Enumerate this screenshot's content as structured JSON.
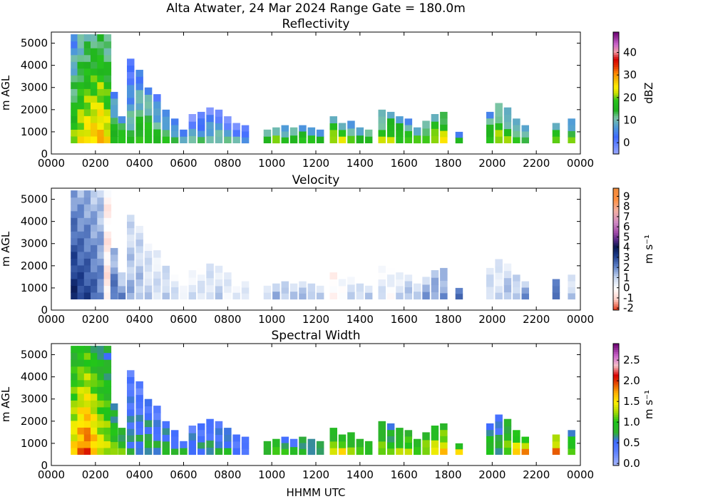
{
  "figure": {
    "title": "Alta Atwater, 24 Mar 2024 Range Gate = 180.0m",
    "xlabel": "HHMM UTC"
  },
  "chart_data": [
    {
      "type": "heatmap",
      "title": "Reflectivity",
      "ylabel": "m AGL",
      "xlim": [
        0,
        2400
      ],
      "ylim": [
        0,
        5500
      ],
      "x_ticks": [
        "0000",
        "0200",
        "0400",
        "0600",
        "0800",
        "1000",
        "1200",
        "1400",
        "1600",
        "1800",
        "2000",
        "2200",
        "0000"
      ],
      "y_ticks": [
        0,
        1000,
        2000,
        3000,
        4000,
        5000
      ],
      "colorbar": {
        "label": "dBZ",
        "range": [
          -5,
          49
        ],
        "ticks": [
          "0",
          "10",
          "20",
          "30",
          "40"
        ],
        "tick_values": [
          0,
          10,
          20,
          30,
          40
        ]
      },
      "series": [
        {
          "t": 105,
          "top": 5400,
          "v": 14
        },
        {
          "t": 135,
          "top": 5400,
          "v": 18
        },
        {
          "t": 165,
          "top": 5400,
          "v": 20
        },
        {
          "t": 195,
          "top": 5400,
          "v": 21
        },
        {
          "t": 225,
          "top": 5400,
          "v": 22
        },
        {
          "t": 255,
          "top": 5400,
          "v": 19
        },
        {
          "t": 285,
          "top": 2800,
          "v": 12
        },
        {
          "t": 320,
          "top": 1700,
          "v": 14
        },
        {
          "t": 360,
          "top": 4300,
          "v": 8
        },
        {
          "t": 400,
          "top": 3800,
          "v": 12
        },
        {
          "t": 440,
          "top": 3000,
          "v": 14
        },
        {
          "t": 480,
          "top": 2700,
          "v": 10
        },
        {
          "t": 520,
          "top": 2000,
          "v": 10
        },
        {
          "t": 560,
          "top": 1600,
          "v": 8
        },
        {
          "t": 600,
          "top": 1100,
          "v": 5
        },
        {
          "t": 640,
          "top": 1800,
          "v": 4
        },
        {
          "t": 680,
          "top": 1900,
          "v": 5
        },
        {
          "t": 720,
          "top": 2100,
          "v": 6
        },
        {
          "t": 760,
          "top": 2000,
          "v": 6
        },
        {
          "t": 800,
          "top": 1700,
          "v": 4
        },
        {
          "t": 840,
          "top": 1400,
          "v": 3
        },
        {
          "t": 880,
          "top": 1300,
          "v": 2
        },
        {
          "t": 980,
          "top": 1100,
          "v": 10
        },
        {
          "t": 1020,
          "top": 1200,
          "v": 12
        },
        {
          "t": 1060,
          "top": 1300,
          "v": 11
        },
        {
          "t": 1100,
          "top": 1200,
          "v": 12
        },
        {
          "t": 1140,
          "top": 1300,
          "v": 12
        },
        {
          "t": 1180,
          "top": 1200,
          "v": 10
        },
        {
          "t": 1220,
          "top": 1100,
          "v": 10
        },
        {
          "t": 1280,
          "top": 1700,
          "v": 17
        },
        {
          "t": 1320,
          "top": 1400,
          "v": 16
        },
        {
          "t": 1360,
          "top": 1500,
          "v": 12
        },
        {
          "t": 1400,
          "top": 1200,
          "v": 11
        },
        {
          "t": 1440,
          "top": 1100,
          "v": 11
        },
        {
          "t": 1500,
          "top": 2000,
          "v": 14
        },
        {
          "t": 1540,
          "top": 1900,
          "v": 16
        },
        {
          "t": 1580,
          "top": 1700,
          "v": 14
        },
        {
          "t": 1620,
          "top": 1600,
          "v": 13
        },
        {
          "t": 1660,
          "top": 1200,
          "v": 11
        },
        {
          "t": 1700,
          "top": 1500,
          "v": 14
        },
        {
          "t": 1740,
          "top": 1800,
          "v": 17
        },
        {
          "t": 1780,
          "top": 1900,
          "v": 18
        },
        {
          "t": 1850,
          "top": 1000,
          "v": 8
        },
        {
          "t": 1990,
          "top": 1900,
          "v": 14
        },
        {
          "t": 2030,
          "top": 2300,
          "v": 16
        },
        {
          "t": 2070,
          "top": 2100,
          "v": 13
        },
        {
          "t": 2110,
          "top": 1600,
          "v": 12
        },
        {
          "t": 2150,
          "top": 1300,
          "v": 10
        },
        {
          "t": 2290,
          "top": 1400,
          "v": 14
        },
        {
          "t": 2360,
          "top": 1600,
          "v": 12
        }
      ]
    },
    {
      "type": "heatmap",
      "title": "Velocity",
      "ylabel": "m AGL",
      "xlim": [
        0,
        2400
      ],
      "ylim": [
        0,
        5500
      ],
      "x_ticks": [
        "0000",
        "0200",
        "0400",
        "0600",
        "0800",
        "1000",
        "1200",
        "1400",
        "1600",
        "1800",
        "2000",
        "2200",
        "0000"
      ],
      "y_ticks": [
        0,
        1000,
        2000,
        3000,
        4000,
        5000
      ],
      "colorbar": {
        "label": "m s⁻¹",
        "range": [
          -2.2,
          9.8
        ],
        "ticks": [
          "-2",
          "-1",
          "0",
          "1",
          "2",
          "3",
          "4",
          "5",
          "6",
          "7",
          "8",
          "9"
        ],
        "tick_values": [
          -2,
          -1,
          0,
          1,
          2,
          3,
          4,
          5,
          6,
          7,
          8,
          9
        ]
      },
      "series": [
        {
          "t": 105,
          "top": 5400,
          "v": 3.6
        },
        {
          "t": 135,
          "top": 5400,
          "v": 3.2
        },
        {
          "t": 165,
          "top": 5400,
          "v": 3.0
        },
        {
          "t": 195,
          "top": 5400,
          "v": 2.6
        },
        {
          "t": 225,
          "top": 5400,
          "v": 2.2
        },
        {
          "t": 255,
          "top": 5400,
          "v": -0.6
        },
        {
          "t": 285,
          "top": 2800,
          "v": 2.5
        },
        {
          "t": 320,
          "top": 1700,
          "v": 2.0
        },
        {
          "t": 360,
          "top": 4300,
          "v": 1.5
        },
        {
          "t": 400,
          "top": 3800,
          "v": 1.4
        },
        {
          "t": 440,
          "top": 3000,
          "v": 1.0
        },
        {
          "t": 480,
          "top": 2700,
          "v": 0.8
        },
        {
          "t": 520,
          "top": 2000,
          "v": 1.2
        },
        {
          "t": 560,
          "top": 1600,
          "v": 0.7
        },
        {
          "t": 600,
          "top": 1100,
          "v": 0.6
        },
        {
          "t": 640,
          "top": 1800,
          "v": 0.7
        },
        {
          "t": 680,
          "top": 1900,
          "v": 0.6
        },
        {
          "t": 720,
          "top": 2100,
          "v": 0.9
        },
        {
          "t": 760,
          "top": 2000,
          "v": 1.0
        },
        {
          "t": 800,
          "top": 1700,
          "v": 0.5
        },
        {
          "t": 840,
          "top": 1400,
          "v": 0.5
        },
        {
          "t": 880,
          "top": 1300,
          "v": 0.4
        },
        {
          "t": 980,
          "top": 1100,
          "v": 1.1
        },
        {
          "t": 1020,
          "top": 1200,
          "v": 1.3
        },
        {
          "t": 1060,
          "top": 1300,
          "v": 1.2
        },
        {
          "t": 1100,
          "top": 1200,
          "v": 1.4
        },
        {
          "t": 1140,
          "top": 1300,
          "v": 1.2
        },
        {
          "t": 1180,
          "top": 1200,
          "v": 1.5
        },
        {
          "t": 1220,
          "top": 1100,
          "v": 1.0
        },
        {
          "t": 1280,
          "top": 1700,
          "v": -0.4
        },
        {
          "t": 1320,
          "top": 1400,
          "v": 0.3
        },
        {
          "t": 1360,
          "top": 1500,
          "v": 0.8
        },
        {
          "t": 1400,
          "top": 1200,
          "v": 1.0
        },
        {
          "t": 1440,
          "top": 1100,
          "v": 1.3
        },
        {
          "t": 1500,
          "top": 2000,
          "v": 0.6
        },
        {
          "t": 1540,
          "top": 1900,
          "v": 0.2
        },
        {
          "t": 1580,
          "top": 1700,
          "v": 0.9
        },
        {
          "t": 1620,
          "top": 1600,
          "v": 1.2
        },
        {
          "t": 1660,
          "top": 1200,
          "v": 1.4
        },
        {
          "t": 1700,
          "top": 1500,
          "v": 1.6
        },
        {
          "t": 1740,
          "top": 1800,
          "v": 1.8
        },
        {
          "t": 1780,
          "top": 1900,
          "v": 2.0
        },
        {
          "t": 1850,
          "top": 1000,
          "v": 2.4
        },
        {
          "t": 1990,
          "top": 1900,
          "v": 1.0
        },
        {
          "t": 2030,
          "top": 2300,
          "v": 0.8
        },
        {
          "t": 2070,
          "top": 2100,
          "v": 1.3
        },
        {
          "t": 2110,
          "top": 1600,
          "v": 1.4
        },
        {
          "t": 2150,
          "top": 1300,
          "v": 1.8
        },
        {
          "t": 2290,
          "top": 1400,
          "v": 2.8
        },
        {
          "t": 2360,
          "top": 1600,
          "v": 1.2
        }
      ]
    },
    {
      "type": "heatmap",
      "title": "Spectral Width",
      "ylabel": "m AGL",
      "xlim": [
        0,
        2400
      ],
      "ylim": [
        0,
        5500
      ],
      "x_ticks": [
        "0000",
        "0200",
        "0400",
        "0600",
        "0800",
        "1000",
        "1200",
        "1400",
        "1600",
        "1800",
        "2000",
        "2200",
        "0000"
      ],
      "y_ticks": [
        0,
        1000,
        2000,
        3000,
        4000,
        5000
      ],
      "colorbar": {
        "label": "m s⁻¹",
        "range": [
          -0.05,
          2.9
        ],
        "ticks": [
          "0.0",
          "0.5",
          "1.0",
          "1.5",
          "2.0",
          "2.5"
        ],
        "tick_values": [
          0,
          0.5,
          1,
          1.5,
          2,
          2.5
        ]
      },
      "series": [
        {
          "t": 105,
          "top": 5400,
          "v": 1.2
        },
        {
          "t": 135,
          "top": 5400,
          "v": 1.4
        },
        {
          "t": 165,
          "top": 5400,
          "v": 1.5
        },
        {
          "t": 195,
          "top": 5400,
          "v": 1.3
        },
        {
          "t": 225,
          "top": 5400,
          "v": 1.1
        },
        {
          "t": 255,
          "top": 5400,
          "v": 1.0
        },
        {
          "t": 285,
          "top": 2800,
          "v": 0.9
        },
        {
          "t": 320,
          "top": 1700,
          "v": 0.8
        },
        {
          "t": 360,
          "top": 4300,
          "v": 0.5
        },
        {
          "t": 400,
          "top": 3800,
          "v": 0.5
        },
        {
          "t": 440,
          "top": 3000,
          "v": 0.6
        },
        {
          "t": 480,
          "top": 2700,
          "v": 0.5
        },
        {
          "t": 520,
          "top": 2000,
          "v": 0.6
        },
        {
          "t": 560,
          "top": 1600,
          "v": 0.5
        },
        {
          "t": 600,
          "top": 1100,
          "v": 0.6
        },
        {
          "t": 640,
          "top": 1800,
          "v": 0.5
        },
        {
          "t": 680,
          "top": 1900,
          "v": 0.5
        },
        {
          "t": 720,
          "top": 2100,
          "v": 0.5
        },
        {
          "t": 760,
          "top": 2000,
          "v": 0.5
        },
        {
          "t": 800,
          "top": 1700,
          "v": 0.6
        },
        {
          "t": 840,
          "top": 1400,
          "v": 0.4
        },
        {
          "t": 880,
          "top": 1300,
          "v": 0.4
        },
        {
          "t": 980,
          "top": 1100,
          "v": 0.7
        },
        {
          "t": 1020,
          "top": 1200,
          "v": 0.8
        },
        {
          "t": 1060,
          "top": 1300,
          "v": 0.7
        },
        {
          "t": 1100,
          "top": 1200,
          "v": 0.6
        },
        {
          "t": 1140,
          "top": 1300,
          "v": 0.7
        },
        {
          "t": 1180,
          "top": 1200,
          "v": 0.6
        },
        {
          "t": 1220,
          "top": 1100,
          "v": 0.6
        },
        {
          "t": 1280,
          "top": 1700,
          "v": 1.0
        },
        {
          "t": 1320,
          "top": 1400,
          "v": 1.1
        },
        {
          "t": 1360,
          "top": 1500,
          "v": 0.9
        },
        {
          "t": 1400,
          "top": 1200,
          "v": 0.9
        },
        {
          "t": 1440,
          "top": 1100,
          "v": 0.8
        },
        {
          "t": 1500,
          "top": 2000,
          "v": 0.9
        },
        {
          "t": 1540,
          "top": 1900,
          "v": 0.8
        },
        {
          "t": 1580,
          "top": 1700,
          "v": 0.9
        },
        {
          "t": 1620,
          "top": 1600,
          "v": 1.0
        },
        {
          "t": 1660,
          "top": 1200,
          "v": 0.9
        },
        {
          "t": 1700,
          "top": 1500,
          "v": 1.0
        },
        {
          "t": 1740,
          "top": 1800,
          "v": 1.1
        },
        {
          "t": 1780,
          "top": 1900,
          "v": 1.2
        },
        {
          "t": 1850,
          "top": 1000,
          "v": 1.1
        },
        {
          "t": 1990,
          "top": 1900,
          "v": 0.8
        },
        {
          "t": 2030,
          "top": 2300,
          "v": 0.6
        },
        {
          "t": 2070,
          "top": 2100,
          "v": 0.9
        },
        {
          "t": 2110,
          "top": 1600,
          "v": 1.2
        },
        {
          "t": 2150,
          "top": 1300,
          "v": 1.3
        },
        {
          "t": 2290,
          "top": 1400,
          "v": 1.4
        },
        {
          "t": 2360,
          "top": 1600,
          "v": 0.9
        }
      ]
    }
  ]
}
